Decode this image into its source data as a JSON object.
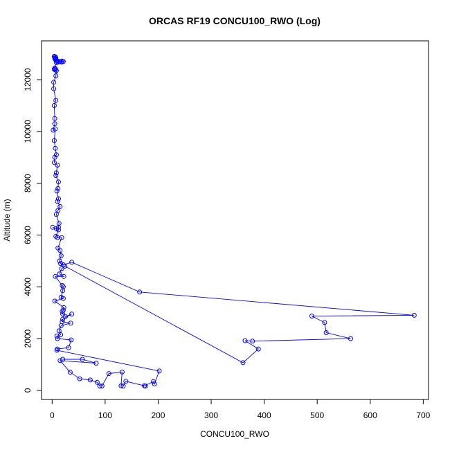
{
  "chart_data": {
    "type": "scatter",
    "title": "ORCAS RF19 CONCU100_RWO (Log)",
    "xlabel": "CONCU100_RWO",
    "ylabel": "Altitude (m)",
    "xlim": [
      -20,
      710
    ],
    "ylim": [
      -350,
      13500
    ],
    "x_ticks": [
      0,
      100,
      200,
      300,
      400,
      500,
      600,
      700
    ],
    "y_ticks": [
      0,
      2000,
      4000,
      6000,
      8000,
      10000,
      12000
    ],
    "grid": false,
    "marker": "open-circle",
    "connected": true,
    "series": [
      {
        "color": "#0000ff",
        "points": [
          [
            4,
            12900
          ],
          [
            6,
            12880
          ],
          [
            5,
            12860
          ],
          [
            7,
            12840
          ],
          [
            5,
            12820
          ],
          [
            6,
            12780
          ],
          [
            8,
            12750
          ],
          [
            10,
            12720
          ],
          [
            14,
            12700
          ],
          [
            18,
            12680
          ],
          [
            21,
            12700
          ],
          [
            19,
            12720
          ],
          [
            15,
            12700
          ],
          [
            11,
            12680
          ],
          [
            8,
            12660
          ],
          [
            5,
            12450
          ],
          [
            6,
            12420
          ],
          [
            4,
            12400
          ],
          [
            6,
            12380
          ],
          [
            8,
            12350
          ],
          [
            7,
            12150
          ],
          [
            3,
            11900
          ],
          [
            3,
            11650
          ],
          [
            7,
            11200
          ],
          [
            4,
            11000
          ],
          [
            5,
            10500
          ],
          [
            5,
            10300
          ],
          [
            2,
            10050
          ],
          [
            6,
            10100
          ],
          [
            4,
            9650
          ],
          [
            6,
            9350
          ],
          [
            8,
            9100
          ],
          [
            5,
            9000
          ],
          [
            4,
            8800
          ],
          [
            10,
            8700
          ],
          [
            8,
            8400
          ],
          [
            7,
            8300
          ],
          [
            12,
            8050
          ],
          [
            11,
            7800
          ],
          [
            9,
            7700
          ],
          [
            12,
            7400
          ],
          [
            10,
            7300
          ],
          [
            15,
            7100
          ],
          [
            11,
            6950
          ],
          [
            8,
            6800
          ],
          [
            13,
            6450
          ],
          [
            12,
            6300
          ],
          [
            8,
            6250
          ],
          [
            1,
            6300
          ],
          [
            12,
            6200
          ],
          [
            7,
            5950
          ],
          [
            10,
            5900
          ],
          [
            18,
            5900
          ],
          [
            11,
            5500
          ],
          [
            15,
            5400
          ],
          [
            17,
            5200
          ],
          [
            14,
            5000
          ],
          [
            16,
            4900
          ],
          [
            21,
            4850
          ],
          [
            37,
            4950
          ],
          [
            165,
            3800
          ],
          [
            683,
            2900
          ],
          [
            490,
            2870
          ],
          [
            514,
            2620
          ],
          [
            517,
            2230
          ],
          [
            563,
            2000
          ],
          [
            378,
            1900
          ],
          [
            364,
            1920
          ],
          [
            389,
            1600
          ],
          [
            360,
            1070
          ],
          [
            24,
            4800
          ],
          [
            18,
            4700
          ],
          [
            14,
            4500
          ],
          [
            22,
            4400
          ],
          [
            6,
            4400
          ],
          [
            19,
            4050
          ],
          [
            21,
            4000
          ],
          [
            20,
            3850
          ],
          [
            17,
            3600
          ],
          [
            21,
            3550
          ],
          [
            5,
            3450
          ],
          [
            22,
            3200
          ],
          [
            21,
            3100
          ],
          [
            19,
            3050
          ],
          [
            20,
            2950
          ],
          [
            25,
            2850
          ],
          [
            37,
            2950
          ],
          [
            20,
            2750
          ],
          [
            19,
            2650
          ],
          [
            35,
            2600
          ],
          [
            17,
            2500
          ],
          [
            13,
            2300
          ],
          [
            16,
            2150
          ],
          [
            9,
            2100
          ],
          [
            10,
            2000
          ],
          [
            36,
            1950
          ],
          [
            31,
            1650
          ],
          [
            10,
            1600
          ],
          [
            9,
            1550
          ],
          [
            202,
            750
          ],
          [
            193,
            250
          ],
          [
            191,
            340
          ],
          [
            174,
            180
          ],
          [
            176,
            170
          ],
          [
            139,
            350
          ],
          [
            134,
            170
          ],
          [
            130,
            180
          ],
          [
            132,
            710
          ],
          [
            107,
            650
          ],
          [
            94,
            170
          ],
          [
            90,
            170
          ],
          [
            85,
            310
          ],
          [
            72,
            400
          ],
          [
            52,
            450
          ],
          [
            34,
            700
          ],
          [
            15,
            1150
          ],
          [
            83,
            1050
          ],
          [
            57,
            1200
          ],
          [
            20,
            1200
          ]
        ]
      }
    ]
  }
}
